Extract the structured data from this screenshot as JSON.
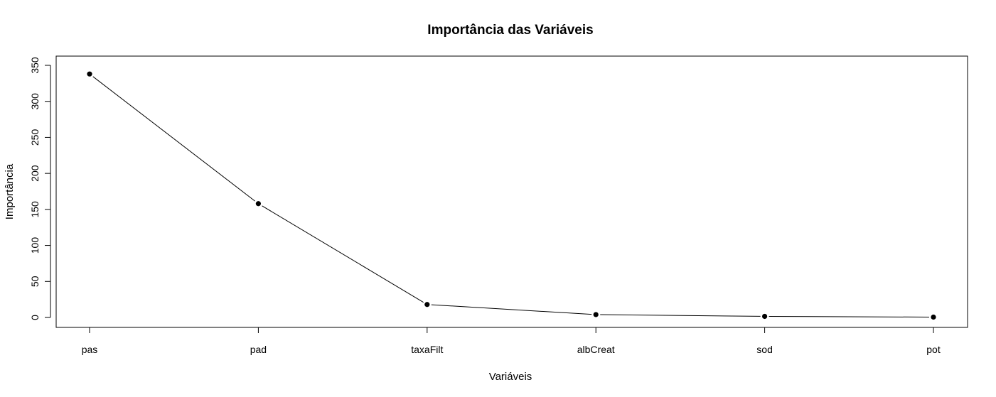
{
  "chart_data": {
    "type": "line",
    "title": "Importância das Variáveis",
    "xlabel": "Variáveis",
    "ylabel": "Importância",
    "categories": [
      "pas",
      "pad",
      "taxaFilt",
      "albCreat",
      "sod",
      "pot"
    ],
    "values": [
      338,
      158,
      18,
      4,
      1.5,
      0.5
    ],
    "yticks": [
      0,
      50,
      100,
      150,
      200,
      250,
      300,
      350
    ],
    "ytick_labels": [
      "0",
      "50",
      "100",
      "150",
      "200",
      "250",
      "300",
      "350"
    ],
    "ylim": [
      -14,
      350
    ],
    "grid": false,
    "line_color": "#000000",
    "marker_color": "#000000"
  }
}
